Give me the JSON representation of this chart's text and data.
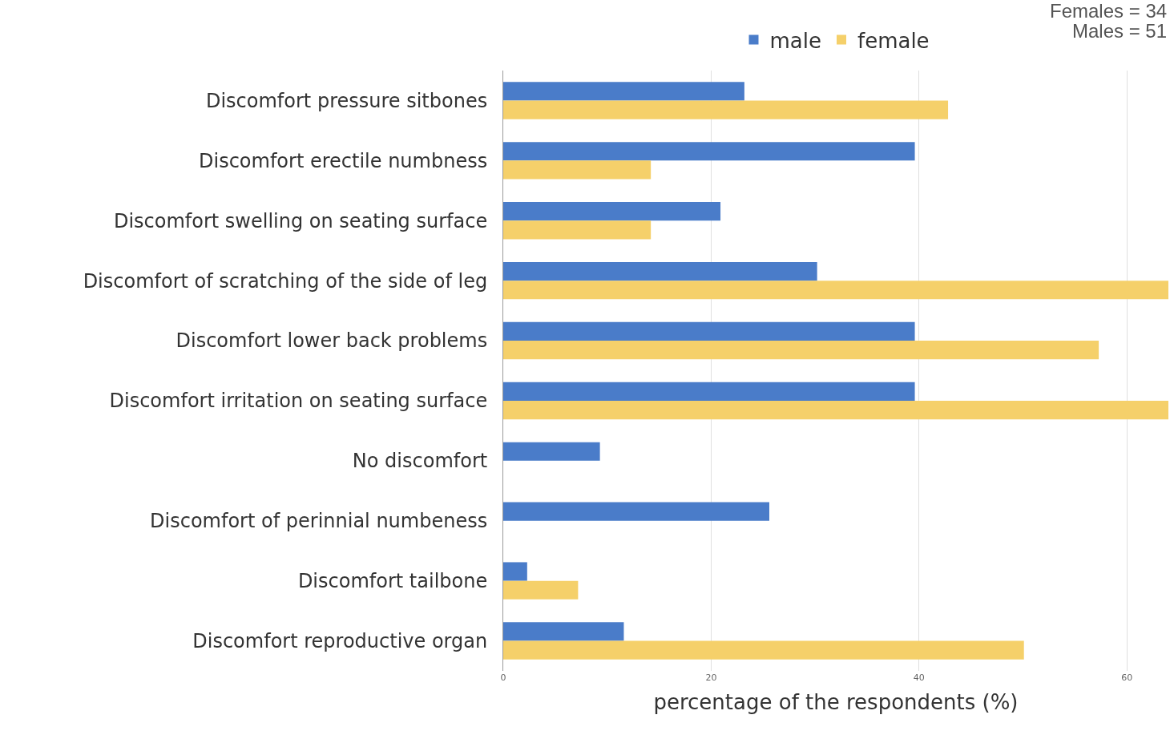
{
  "chart_data": {
    "type": "bar",
    "orientation": "horizontal",
    "categories": [
      "Discomfort pressure sitbones",
      "Discomfort erectile numbness",
      "Discomfort swelling on seating surface",
      "Discomfort of scratching of the side of leg",
      "Discomfort lower back problems",
      "Discomfort irritation on seating surface",
      "No discomfort",
      "Discomfort of perinnial numbeness",
      "Discomfort tailbone",
      "Discomfort reproductive organ"
    ],
    "series": [
      {
        "name": "male",
        "color": "#4a7cc9",
        "values": [
          23.2,
          39.6,
          20.9,
          30.2,
          39.6,
          39.6,
          9.3,
          25.6,
          2.3,
          11.6
        ]
      },
      {
        "name": "female",
        "color": "#f5d06a",
        "values": [
          42.8,
          14.2,
          14.2,
          64,
          57.3,
          64,
          null,
          null,
          7.2,
          50.1
        ]
      }
    ],
    "xlim": [
      0,
      64
    ],
    "xticks": [
      0,
      20,
      40,
      60
    ],
    "xlabel": "percentage of the respondents (%)",
    "annotations": [
      "Females = 34",
      "Males = 51"
    ],
    "grid": "x",
    "legend": "top"
  }
}
